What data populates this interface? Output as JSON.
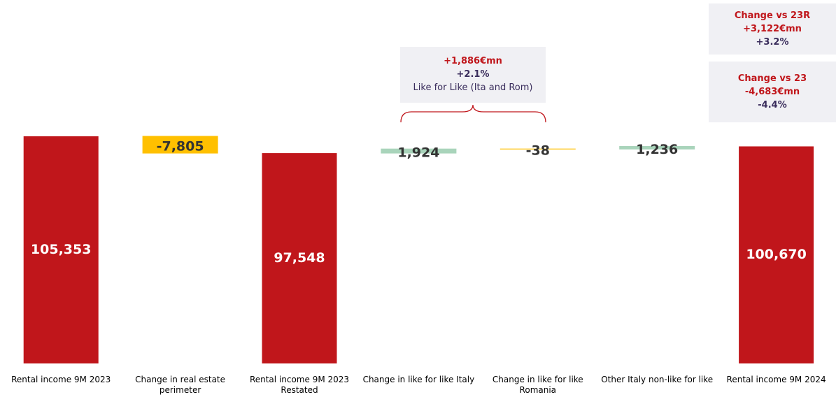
{
  "chart_data": {
    "type": "waterfall",
    "categories": [
      "Rental income 9M 2023",
      "Change in real estate perimeter",
      "Rental income 9M 2023 Restated",
      "Change in like for like Italy",
      "Change in like for like Romania",
      "Other Italy non-like for like",
      "Rental income 9M 2024"
    ],
    "values": [
      105353,
      -7805,
      97548,
      1924,
      -38,
      1236,
      100670
    ],
    "value_labels": [
      "105,353",
      "-7,805",
      "97,548",
      "1,924",
      "-38",
      "1,236",
      "100,670"
    ],
    "measure": [
      "absolute",
      "relative",
      "absolute",
      "relative",
      "relative",
      "relative",
      "absolute"
    ],
    "colors": [
      "#c0161b",
      "#ffc000",
      "#c0161b",
      "#a9d4bb",
      "#ffc000",
      "#a9d4bb",
      "#c0161b"
    ],
    "annotations": [
      {
        "lines": [
          "+1,886€mn",
          "+2.1%",
          "Like for Like (Ita and Rom)"
        ]
      },
      {
        "lines": [
          "Change vs 23R",
          "+3,122€mn",
          "+3.2%"
        ]
      },
      {
        "lines": [
          "Change vs 23",
          "-4,683€mn",
          "-4.4%"
        ]
      }
    ]
  }
}
